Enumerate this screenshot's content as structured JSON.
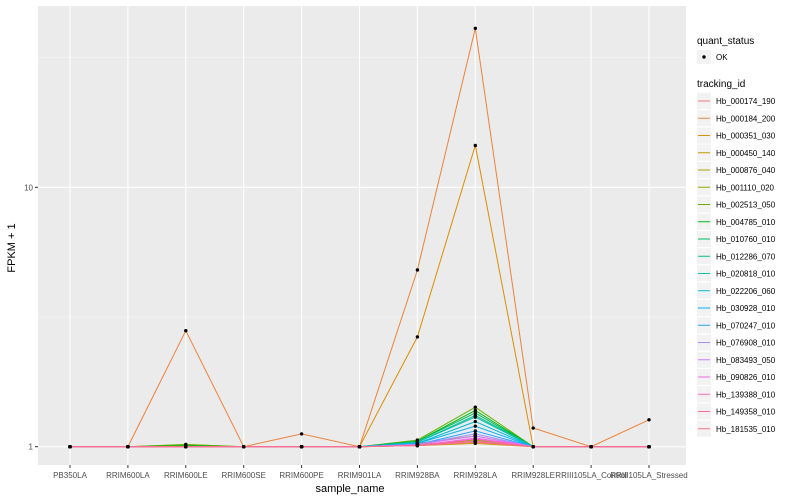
{
  "chart_data": {
    "type": "line",
    "xlabel": "sample_name",
    "ylabel": "FPKM + 1",
    "y_scale": "log10",
    "y_ticks": [
      1,
      10
    ],
    "ylim": [
      0.85,
      50
    ],
    "grid": true,
    "legend_placement": "right",
    "categories": [
      "PB350LA",
      "RRIM600LA",
      "RRIM600LE",
      "RRIM600SE",
      "RRIM600PE",
      "RRIM901LA",
      "RRIM928BA",
      "RRIM928LA",
      "RRIM928LE",
      "RRIII105LA_Control",
      "RRIII105LA_Stressed"
    ],
    "quant_status_legend": {
      "title": "quant_status",
      "entries": [
        "OK"
      ]
    },
    "tracking_legend_title": "tracking_id",
    "series": [
      {
        "name": "Hb_000174_190",
        "color": "#F8766D",
        "values": [
          1,
          1,
          1,
          1,
          1,
          1,
          1.02,
          1.05,
          1,
          1,
          1
        ]
      },
      {
        "name": "Hb_000184_200",
        "color": "#EC8239",
        "values": [
          1,
          1,
          2.8,
          1,
          1.12,
          1,
          4.8,
          41,
          1.18,
          1,
          1.27
        ]
      },
      {
        "name": "Hb_000351_030",
        "color": "#DB8E00",
        "values": [
          1,
          1,
          1,
          1,
          1,
          1,
          2.65,
          14.5,
          1,
          1,
          1
        ]
      },
      {
        "name": "Hb_000450_140",
        "color": "#C79800",
        "values": [
          1,
          1,
          1,
          1,
          1,
          1,
          1.01,
          1.03,
          1,
          1,
          1
        ]
      },
      {
        "name": "Hb_000876_040",
        "color": "#AEA200",
        "values": [
          1,
          1,
          1.02,
          1,
          1,
          1,
          1.03,
          1.1,
          1,
          1,
          1
        ]
      },
      {
        "name": "Hb_001110_020",
        "color": "#8FAA00",
        "values": [
          1,
          1,
          1.01,
          1,
          1,
          1,
          1.02,
          1.06,
          1,
          1,
          1
        ]
      },
      {
        "name": "Hb_002513_050",
        "color": "#64B200",
        "values": [
          1,
          1,
          1.02,
          1,
          1,
          1,
          1.06,
          1.42,
          1,
          1,
          1
        ]
      },
      {
        "name": "Hb_004785_010",
        "color": "#00B81B",
        "values": [
          1,
          1,
          1.01,
          1,
          1,
          1,
          1.05,
          1.38,
          1,
          1,
          1
        ]
      },
      {
        "name": "Hb_010760_010",
        "color": "#00BD5C",
        "values": [
          1,
          1,
          1,
          1,
          1,
          1,
          1.05,
          1.35,
          1,
          1,
          1
        ]
      },
      {
        "name": "Hb_012286_070",
        "color": "#00C08B",
        "values": [
          1,
          1,
          1,
          1,
          1,
          1,
          1.04,
          1.32,
          1,
          1,
          1
        ]
      },
      {
        "name": "Hb_020818_010",
        "color": "#00C1B2",
        "values": [
          1,
          1,
          1,
          1,
          1,
          1,
          1.04,
          1.3,
          1,
          1,
          1
        ]
      },
      {
        "name": "Hb_022206_060",
        "color": "#00BCD6",
        "values": [
          1,
          1,
          1,
          1,
          1,
          1,
          1.03,
          1.25,
          1,
          1,
          1
        ]
      },
      {
        "name": "Hb_030928_010",
        "color": "#00B3F2",
        "values": [
          1,
          1,
          1,
          1,
          1,
          1,
          1.03,
          1.2,
          1,
          1,
          1
        ]
      },
      {
        "name": "Hb_070247_010",
        "color": "#29A3FF",
        "values": [
          1,
          1,
          1,
          1,
          1,
          1,
          1.02,
          1.15,
          1,
          1,
          1
        ]
      },
      {
        "name": "Hb_076908_010",
        "color": "#9C8DFF",
        "values": [
          1,
          1,
          1,
          1,
          1,
          1,
          1.02,
          1.12,
          1,
          1,
          1
        ]
      },
      {
        "name": "Hb_083493_050",
        "color": "#D277FF",
        "values": [
          1,
          1,
          1,
          1,
          1,
          1,
          1.02,
          1.1,
          1,
          1,
          1
        ]
      },
      {
        "name": "Hb_090826_010",
        "color": "#F166E8",
        "values": [
          1,
          1,
          1,
          1,
          1,
          1,
          1.01,
          1.08,
          1,
          1,
          1
        ]
      },
      {
        "name": "Hb_139388_010",
        "color": "#FF61C7",
        "values": [
          1,
          1,
          1,
          1,
          1,
          1,
          1.01,
          1.07,
          1,
          1,
          1
        ]
      },
      {
        "name": "Hb_149358_010",
        "color": "#FF689E",
        "values": [
          1,
          1,
          1,
          1,
          1,
          1,
          1.01,
          1.05,
          1,
          1,
          1
        ]
      },
      {
        "name": "Hb_181535_010",
        "color": "#FC717F",
        "values": [
          1,
          1,
          1,
          1,
          1,
          1,
          1.01,
          1.04,
          1,
          1,
          1
        ]
      }
    ]
  }
}
